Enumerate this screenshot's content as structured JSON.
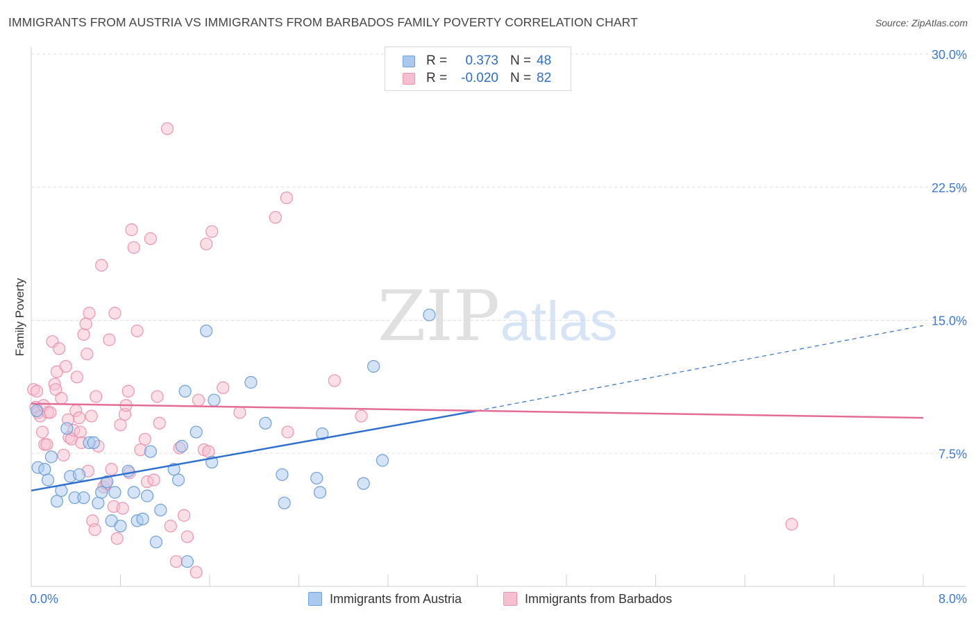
{
  "header": {
    "title": "IMMIGRANTS FROM AUSTRIA VS IMMIGRANTS FROM BARBADOS FAMILY POVERTY CORRELATION CHART",
    "source": "Source: ZipAtlas.com"
  },
  "watermark": {
    "zip": "ZIP",
    "atlas": "atlas"
  },
  "legend_top": {
    "rows": [
      {
        "r_label": "R =",
        "r_value": "0.373",
        "n_label": "N =",
        "n_value": "48"
      },
      {
        "r_label": "R =",
        "r_value": "-0.020",
        "n_label": "N =",
        "n_value": "82"
      }
    ]
  },
  "colors": {
    "austria_fill": "#a9c9ee",
    "austria_stroke": "#6d9fd9",
    "austria_line": "#2e6fd0",
    "barbados_fill": "#f6bfd0",
    "barbados_stroke": "#ec93b1",
    "barbados_line": "#e56b97",
    "axis_text": "#3d7ad0",
    "grid": "#dddddd"
  },
  "chart_data": {
    "type": "scatter",
    "title": "IMMIGRANTS FROM AUSTRIA VS IMMIGRANTS FROM BARBADOS FAMILY POVERTY CORRELATION CHART",
    "xlabel": "",
    "ylabel": "Family Poverty",
    "xlim": [
      0,
      8
    ],
    "ylim": [
      0,
      30
    ],
    "x_tick_labels": [
      "0.0%",
      "8.0%"
    ],
    "y_ticks": [
      7.5,
      15,
      22.5,
      30
    ],
    "y_tick_labels": [
      "7.5%",
      "15.0%",
      "22.5%",
      "30.0%"
    ],
    "grid": true,
    "legend_placement": "bottom-center",
    "series": [
      {
        "name": "Immigrants from Austria",
        "r": 0.373,
        "n": 48,
        "trend": {
          "x0": 0,
          "y0": 5.4,
          "x1": 4.0,
          "y1": 9.9,
          "dashed_to_x": 8.0,
          "dashed_to_y": 14.7
        },
        "points": [
          [
            0.05,
            9.9
          ],
          [
            0.06,
            6.7
          ],
          [
            0.12,
            6.6
          ],
          [
            0.15,
            6.0
          ],
          [
            0.18,
            7.3
          ],
          [
            0.23,
            4.8
          ],
          [
            0.27,
            5.4
          ],
          [
            0.32,
            8.9
          ],
          [
            0.35,
            6.2
          ],
          [
            0.39,
            5.0
          ],
          [
            0.43,
            6.3
          ],
          [
            0.47,
            5.0
          ],
          [
            0.52,
            8.1
          ],
          [
            0.56,
            8.1
          ],
          [
            0.6,
            4.7
          ],
          [
            0.63,
            5.3
          ],
          [
            0.68,
            5.9
          ],
          [
            0.72,
            3.7
          ],
          [
            0.75,
            5.3
          ],
          [
            0.8,
            3.4
          ],
          [
            0.87,
            6.5
          ],
          [
            0.92,
            5.3
          ],
          [
            0.95,
            3.7
          ],
          [
            1.0,
            3.8
          ],
          [
            1.04,
            5.1
          ],
          [
            1.07,
            7.6
          ],
          [
            1.12,
            2.5
          ],
          [
            1.16,
            4.3
          ],
          [
            1.28,
            6.6
          ],
          [
            1.32,
            6.0
          ],
          [
            1.35,
            7.9
          ],
          [
            1.38,
            11.0
          ],
          [
            1.4,
            1.4
          ],
          [
            1.48,
            8.7
          ],
          [
            1.57,
            14.4
          ],
          [
            1.62,
            7.0
          ],
          [
            1.64,
            10.5
          ],
          [
            1.97,
            11.5
          ],
          [
            2.1,
            9.2
          ],
          [
            2.25,
            6.3
          ],
          [
            2.27,
            4.7
          ],
          [
            2.56,
            6.1
          ],
          [
            2.59,
            5.3
          ],
          [
            2.61,
            8.6
          ],
          [
            2.98,
            5.8
          ],
          [
            3.07,
            12.4
          ],
          [
            3.15,
            7.1
          ],
          [
            3.57,
            15.3
          ]
        ]
      },
      {
        "name": "Immigrants from Barbados",
        "r": -0.02,
        "n": 82,
        "trend": {
          "x0": 0,
          "y0": 10.3,
          "x1": 8.0,
          "y1": 9.5
        },
        "points": [
          [
            0.02,
            11.1
          ],
          [
            0.04,
            10.1
          ],
          [
            0.05,
            11.0
          ],
          [
            0.06,
            9.8
          ],
          [
            0.08,
            9.6
          ],
          [
            0.1,
            8.7
          ],
          [
            0.11,
            10.2
          ],
          [
            0.12,
            8.0
          ],
          [
            0.14,
            8.0
          ],
          [
            0.15,
            9.8
          ],
          [
            0.17,
            9.8
          ],
          [
            0.19,
            13.8
          ],
          [
            0.21,
            11.4
          ],
          [
            0.22,
            11.1
          ],
          [
            0.23,
            12.1
          ],
          [
            0.25,
            13.4
          ],
          [
            0.27,
            10.6
          ],
          [
            0.29,
            7.4
          ],
          [
            0.31,
            12.4
          ],
          [
            0.33,
            9.4
          ],
          [
            0.34,
            8.4
          ],
          [
            0.36,
            8.3
          ],
          [
            0.38,
            8.8
          ],
          [
            0.4,
            9.9
          ],
          [
            0.41,
            11.8
          ],
          [
            0.43,
            9.5
          ],
          [
            0.44,
            8.7
          ],
          [
            0.45,
            8.1
          ],
          [
            0.47,
            14.2
          ],
          [
            0.49,
            14.8
          ],
          [
            0.5,
            13.1
          ],
          [
            0.51,
            6.5
          ],
          [
            0.52,
            15.4
          ],
          [
            0.54,
            9.6
          ],
          [
            0.55,
            3.7
          ],
          [
            0.57,
            3.2
          ],
          [
            0.58,
            10.7
          ],
          [
            0.6,
            7.9
          ],
          [
            0.63,
            18.1
          ],
          [
            0.65,
            5.6
          ],
          [
            0.67,
            5.8
          ],
          [
            0.7,
            13.9
          ],
          [
            0.72,
            6.6
          ],
          [
            0.74,
            4.5
          ],
          [
            0.75,
            15.4
          ],
          [
            0.77,
            2.7
          ],
          [
            0.8,
            9.1
          ],
          [
            0.82,
            4.4
          ],
          [
            0.84,
            9.7
          ],
          [
            0.85,
            10.2
          ],
          [
            0.87,
            11.0
          ],
          [
            0.88,
            6.4
          ],
          [
            0.9,
            20.1
          ],
          [
            0.92,
            19.1
          ],
          [
            0.95,
            14.4
          ],
          [
            0.98,
            7.7
          ],
          [
            1.02,
            8.3
          ],
          [
            1.04,
            5.9
          ],
          [
            1.07,
            19.6
          ],
          [
            1.1,
            6.0
          ],
          [
            1.13,
            10.7
          ],
          [
            1.15,
            9.2
          ],
          [
            1.22,
            25.8
          ],
          [
            1.25,
            3.4
          ],
          [
            1.3,
            1.4
          ],
          [
            1.33,
            7.8
          ],
          [
            1.37,
            4.0
          ],
          [
            1.4,
            2.8
          ],
          [
            1.48,
            0.8
          ],
          [
            1.5,
            10.5
          ],
          [
            1.55,
            7.7
          ],
          [
            1.57,
            19.3
          ],
          [
            1.59,
            7.6
          ],
          [
            1.62,
            20.0
          ],
          [
            1.72,
            11.2
          ],
          [
            1.87,
            9.8
          ],
          [
            2.19,
            20.8
          ],
          [
            2.29,
            21.9
          ],
          [
            2.3,
            8.7
          ],
          [
            2.72,
            11.6
          ],
          [
            2.96,
            9.6
          ],
          [
            6.82,
            3.5
          ]
        ]
      }
    ]
  },
  "bottom_legend": [
    {
      "label": "Immigrants from Austria"
    },
    {
      "label": "Immigrants from Barbados"
    }
  ]
}
